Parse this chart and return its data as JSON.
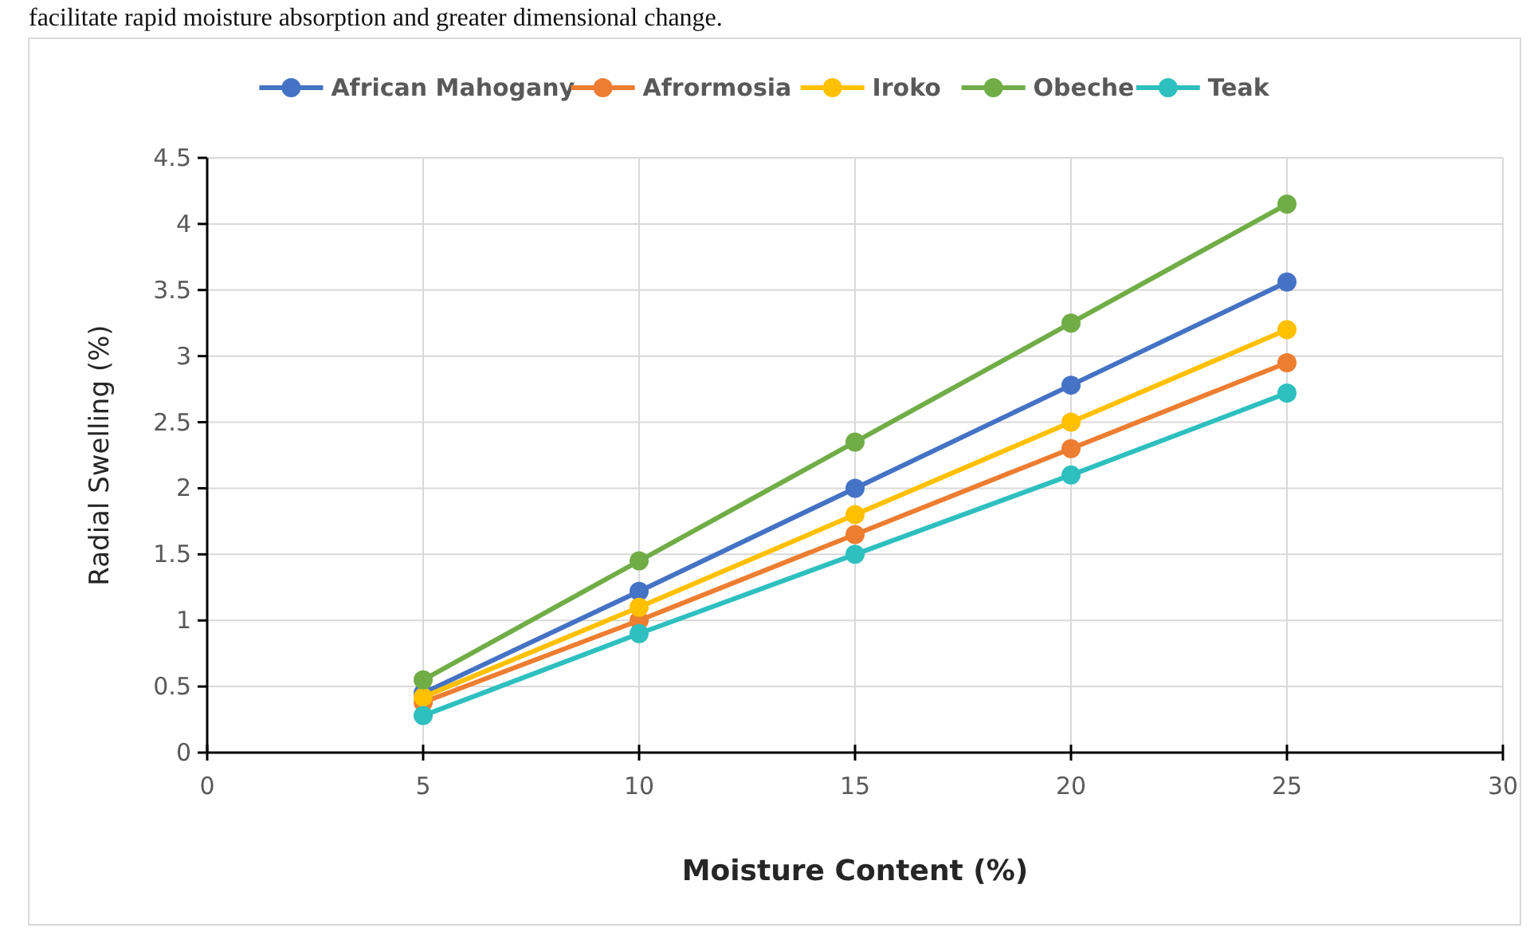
{
  "chart_data": {
    "type": "line",
    "xlabel": "Moisture Content (%)",
    "ylabel": "Radial Swelling (%)",
    "annotations": [
      "facilitate rapid moisture absorption and greater dimensional change."
    ],
    "x": [
      5,
      10,
      15,
      20,
      25
    ],
    "series": [
      {
        "name": "African Mahogany",
        "color": "#4472c4",
        "values": [
          0.45,
          1.22,
          2.0,
          2.78,
          3.56
        ]
      },
      {
        "name": "Afrormosia",
        "color": "#ed7d31",
        "values": [
          0.38,
          1.0,
          1.65,
          2.3,
          2.95
        ]
      },
      {
        "name": "Iroko",
        "color": "#ffc000",
        "values": [
          0.42,
          1.1,
          1.8,
          2.5,
          3.2
        ]
      },
      {
        "name": "Obeche",
        "color": "#70ad47",
        "values": [
          0.55,
          1.45,
          2.35,
          3.25,
          4.15
        ]
      },
      {
        "name": "Teak",
        "color": "#2ebfbf",
        "values": [
          0.28,
          0.9,
          1.5,
          2.1,
          2.72
        ]
      }
    ],
    "xlim": [
      0,
      30
    ],
    "xticks": [
      0,
      5,
      10,
      15,
      20,
      25,
      30
    ],
    "ylim": [
      0,
      4.5
    ],
    "yticks": [
      0,
      0.5,
      1,
      1.5,
      2,
      2.5,
      3,
      3.5,
      4,
      4.5
    ],
    "grid": true,
    "legend": "top",
    "marker": "circle",
    "line_style": "solid"
  }
}
